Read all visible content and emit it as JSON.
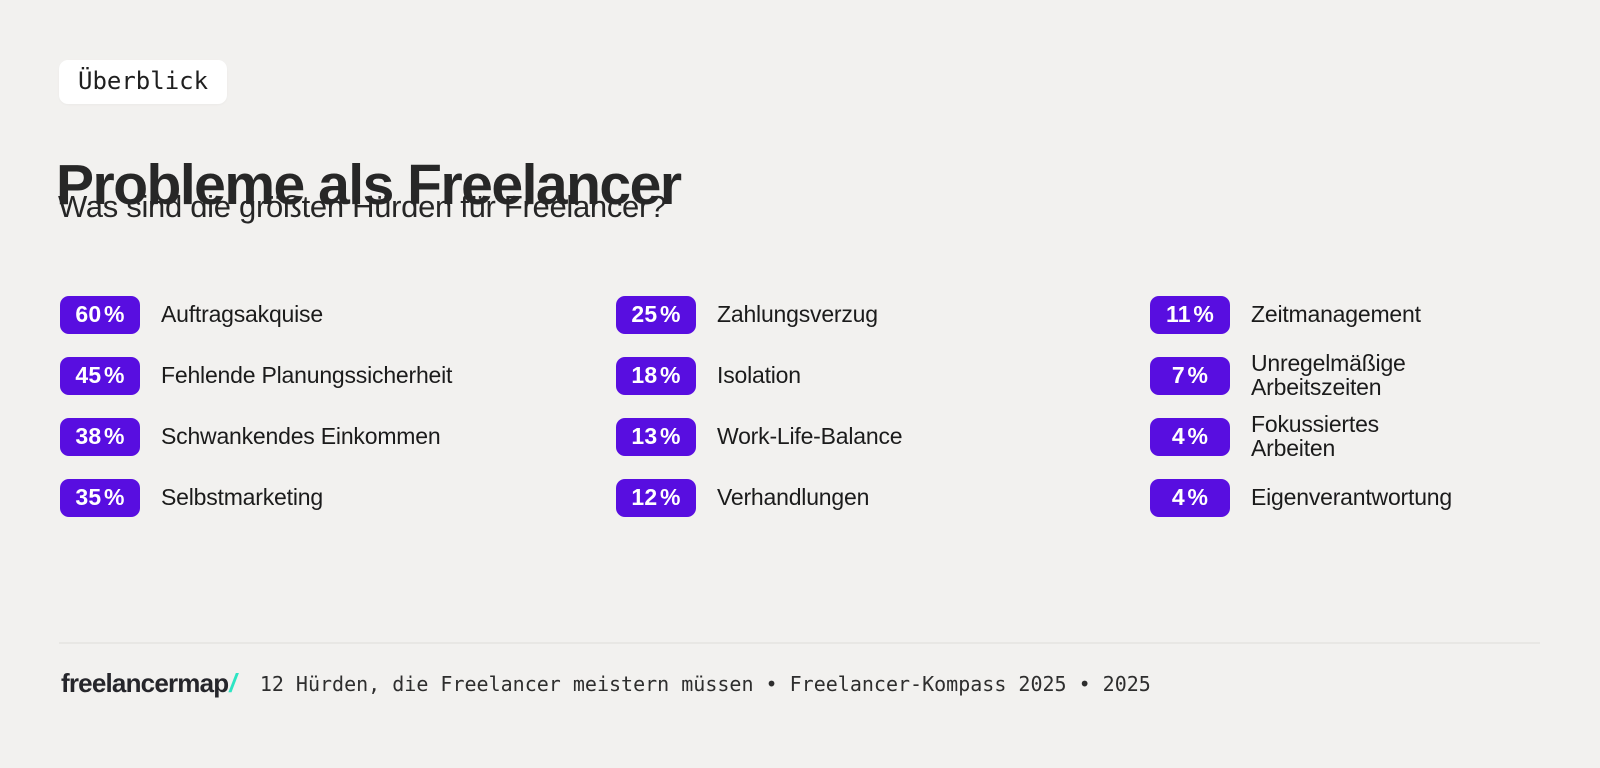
{
  "page": {
    "background": "#f2f1ef",
    "accent": "#580ee0",
    "logo_slash_color": "#2de5c3"
  },
  "header": {
    "badge": "Überblick",
    "title": "Probleme als Freelancer",
    "subtitle": "Was sind die größten Hürden für Freelancer?"
  },
  "stats": {
    "columns": [
      [
        {
          "pct": "60 %",
          "name": "Auftragsakquise"
        },
        {
          "pct": "45 %",
          "name": "Fehlende Planungssicherheit"
        },
        {
          "pct": "38 %",
          "name": "Schwankendes Einkommen"
        },
        {
          "pct": "35 %",
          "name": "Selbstmarketing"
        }
      ],
      [
        {
          "pct": "25 %",
          "name": "Zahlungsverzug"
        },
        {
          "pct": "18 %",
          "name": "Isolation"
        },
        {
          "pct": "13 %",
          "name": "Work-Life-Balance"
        },
        {
          "pct": "12 %",
          "name": "Verhandlungen"
        }
      ],
      [
        {
          "pct": "11 %",
          "name": "Zeitmanagement"
        },
        {
          "pct": "7 %",
          "name": "Unregelmäßige\nArbeitszeiten"
        },
        {
          "pct": "4 %",
          "name": "Fokussiertes\nArbeiten"
        },
        {
          "pct": "4 %",
          "name": "Eigenverantwortung"
        }
      ]
    ]
  },
  "footer": {
    "logo": "freelancermap",
    "logo_slash": "/",
    "caption": "12 Hürden, die Freelancer meistern müssen • Freelancer-Kompass 2025 • 2025"
  },
  "chart_data": {
    "type": "table",
    "title": "Probleme als Freelancer",
    "subtitle": "Was sind die größten Hürden für Freelancer?",
    "unit": "%",
    "categories": [
      "Auftragsakquise",
      "Fehlende Planungssicherheit",
      "Schwankendes Einkommen",
      "Selbstmarketing",
      "Zahlungsverzug",
      "Isolation",
      "Work-Life-Balance",
      "Verhandlungen",
      "Zeitmanagement",
      "Unregelmäßige Arbeitszeiten",
      "Fokussiertes Arbeiten",
      "Eigenverantwortung"
    ],
    "values": [
      60,
      45,
      38,
      35,
      25,
      18,
      13,
      12,
      11,
      7,
      4,
      4
    ],
    "layout": "3-column grid, values shown as violet percent badges",
    "source": "Freelancer-Kompass 2025"
  }
}
